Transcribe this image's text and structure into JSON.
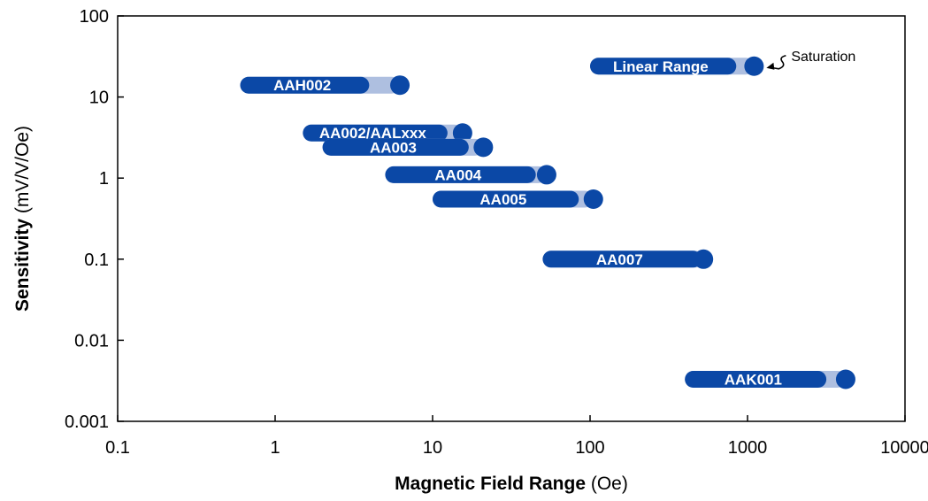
{
  "chart_data": {
    "type": "range-bar",
    "xlabel": {
      "bold": "Magnetic Field Range",
      "unit": "(Oe)"
    },
    "ylabel": {
      "bold": "Sensitivity",
      "unit": "(mV/V/Oe)"
    },
    "xscale": "log",
    "yscale": "log",
    "xlim": [
      0.1,
      10000
    ],
    "ylim": [
      0.001,
      100
    ],
    "xticks": [
      "0.1",
      "1",
      "10",
      "100",
      "1000",
      "10000"
    ],
    "yticks": [
      "0.001",
      "0.01",
      "0.1",
      "1",
      "10",
      "100"
    ],
    "grid": false,
    "colors": {
      "linear": "#0b48a6",
      "saturation": "#aebfe0",
      "dot": "#0b48a6"
    },
    "series": [
      {
        "name": "Linear Range",
        "sensitivity": 24,
        "linear_start": 100,
        "linear_end": 750,
        "saturation": 1100,
        "label_text": "Linear Range"
      },
      {
        "name": "AAH002",
        "sensitivity": 14,
        "linear_start": 0.6,
        "linear_end": 3.5,
        "saturation": 6.2,
        "label_text": "AAH002"
      },
      {
        "name": "AA002/AALxxx",
        "sensitivity": 3.6,
        "linear_start": 1.5,
        "linear_end": 11,
        "saturation": 15.5,
        "label_text": "AA002/AALxxx"
      },
      {
        "name": "AA003",
        "sensitivity": 2.4,
        "linear_start": 2.0,
        "linear_end": 15,
        "saturation": 21,
        "label_text": "AA003"
      },
      {
        "name": "AA004",
        "sensitivity": 1.1,
        "linear_start": 5.0,
        "linear_end": 40,
        "saturation": 53,
        "label_text": "AA004"
      },
      {
        "name": "AA005",
        "sensitivity": 0.55,
        "linear_start": 10,
        "linear_end": 75,
        "saturation": 105,
        "label_text": "AA005"
      },
      {
        "name": "AA007",
        "sensitivity": 0.1,
        "linear_start": 50,
        "linear_end": 450,
        "saturation": 525,
        "label_text": "AA007"
      },
      {
        "name": "AAK001",
        "sensitivity": 0.0033,
        "linear_start": 400,
        "linear_end": 2800,
        "saturation": 4200,
        "label_text": "AAK001"
      }
    ],
    "annotations": [
      {
        "text": "Saturation",
        "target_series": 0
      }
    ]
  }
}
